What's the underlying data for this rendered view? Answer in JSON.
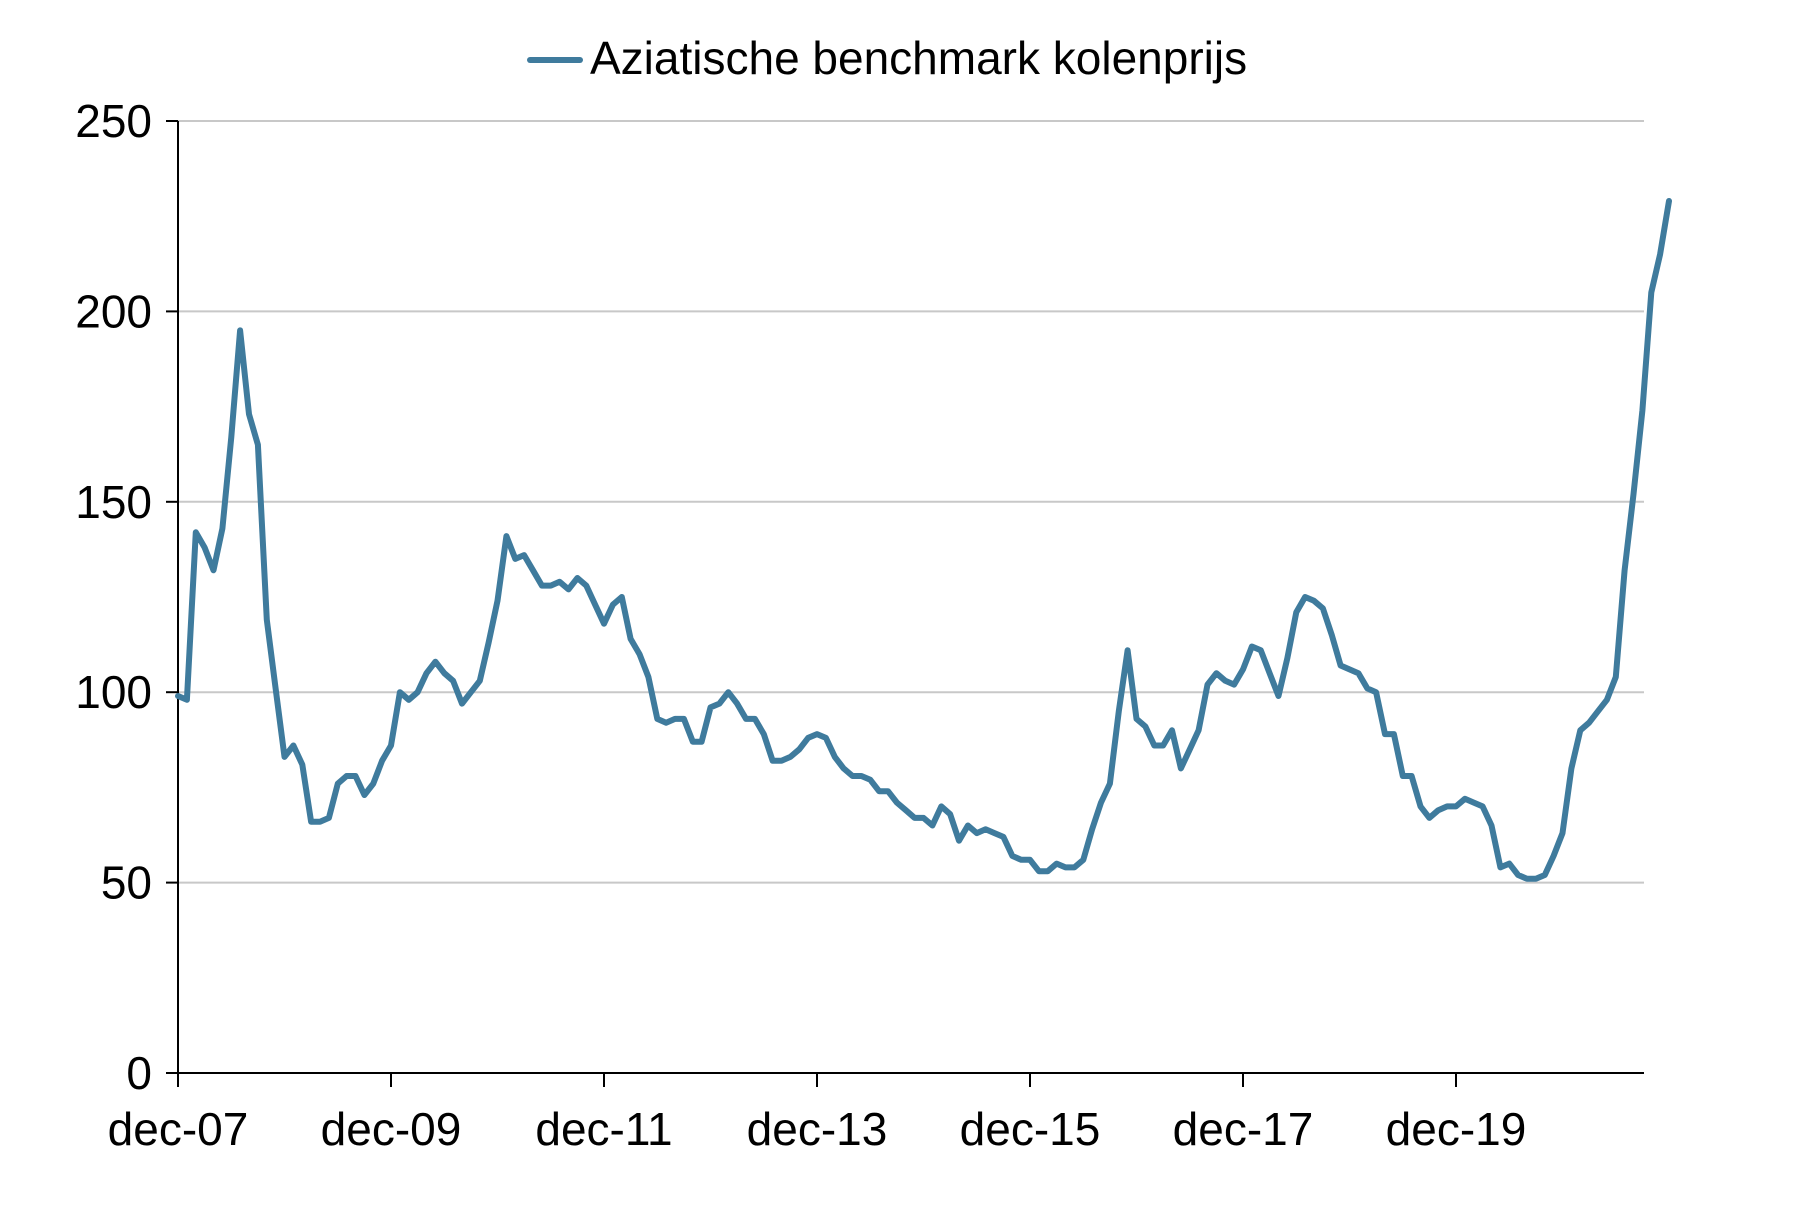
{
  "chart_data": {
    "type": "line",
    "title": "",
    "xlabel": "",
    "ylabel": "",
    "ylim": [
      0,
      250
    ],
    "yticks": [
      0,
      50,
      100,
      150,
      200,
      250
    ],
    "xticks": [
      "dec-07",
      "dec-09",
      "dec-11",
      "dec-13",
      "dec-15",
      "dec-17",
      "dec-19"
    ],
    "x_start": "dec-07",
    "x_step": "1 month",
    "grid": "horizontal",
    "legend_position": "top-center",
    "series": [
      {
        "name": "Aziatische benchmark kolenprijs",
        "color": "#3f7b9d",
        "values": [
          99,
          98,
          142,
          138,
          132,
          143,
          167,
          195,
          173,
          165,
          119,
          101,
          83,
          86,
          81,
          66,
          66,
          67,
          76,
          78,
          78,
          73,
          76,
          82,
          86,
          100,
          98,
          100,
          105,
          108,
          105,
          103,
          97,
          100,
          103,
          113,
          124,
          141,
          135,
          136,
          132,
          128,
          128,
          129,
          127,
          130,
          128,
          123,
          118,
          123,
          125,
          114,
          110,
          104,
          93,
          92,
          93,
          93,
          87,
          87,
          96,
          97,
          100,
          97,
          93,
          93,
          89,
          82,
          82,
          83,
          85,
          88,
          89,
          88,
          83,
          80,
          78,
          78,
          77,
          74,
          74,
          71,
          69,
          67,
          67,
          65,
          70,
          68,
          61,
          65,
          63,
          64,
          63,
          62,
          57,
          56,
          56,
          53,
          53,
          55,
          54,
          54,
          56,
          64,
          71,
          76,
          95,
          111,
          93,
          91,
          86,
          86,
          90,
          80,
          85,
          90,
          102,
          105,
          103,
          102,
          106,
          112,
          111,
          105,
          99,
          109,
          121,
          125,
          124,
          122,
          115,
          107,
          106,
          105,
          101,
          100,
          89,
          89,
          78,
          78,
          70,
          67,
          69,
          70,
          70,
          72,
          71,
          70,
          65,
          54,
          55,
          52,
          51,
          51,
          52,
          57,
          63,
          80,
          90,
          92,
          95,
          98,
          104,
          132,
          152,
          174,
          205,
          215,
          229
        ]
      }
    ]
  }
}
